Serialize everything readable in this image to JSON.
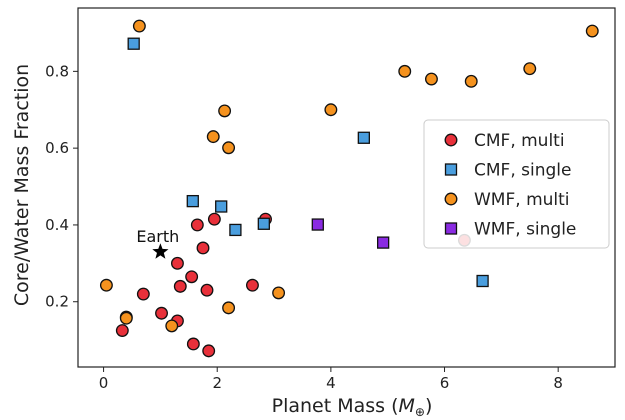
{
  "chart_data": {
    "type": "scatter",
    "title": "",
    "xlabel": "Planet Mass (",
    "xlabel_math": "M",
    "xlabel_sub": "⊕",
    "xlabel_end": ")",
    "ylabel": "Core/Water Mass Fraction",
    "xlim": [
      -0.45,
      9.0
    ],
    "ylim": [
      0.03,
      0.965
    ],
    "xticks": [
      0,
      2,
      4,
      6,
      8
    ],
    "yticks": [
      0.2,
      0.4,
      0.6,
      0.8
    ],
    "xtick_labels": [
      "0",
      "2",
      "4",
      "6",
      "8"
    ],
    "ytick_labels": [
      "0.2",
      "0.4",
      "0.6",
      "0.8"
    ],
    "grid": false,
    "legend_position": "right",
    "series": [
      {
        "name": "CMF, multi",
        "marker": "circle",
        "color": "#e8303a",
        "points": [
          {
            "x": 0.33,
            "y": 0.125
          },
          {
            "x": 0.4,
            "y": 0.16
          },
          {
            "x": 0.7,
            "y": 0.22
          },
          {
            "x": 1.02,
            "y": 0.17
          },
          {
            "x": 1.3,
            "y": 0.3
          },
          {
            "x": 1.35,
            "y": 0.24
          },
          {
            "x": 1.3,
            "y": 0.15
          },
          {
            "x": 1.55,
            "y": 0.265
          },
          {
            "x": 1.58,
            "y": 0.09
          },
          {
            "x": 1.65,
            "y": 0.4
          },
          {
            "x": 1.75,
            "y": 0.34
          },
          {
            "x": 1.82,
            "y": 0.23
          },
          {
            "x": 1.85,
            "y": 0.072
          },
          {
            "x": 1.95,
            "y": 0.415
          },
          {
            "x": 2.62,
            "y": 0.243
          },
          {
            "x": 2.85,
            "y": 0.415
          },
          {
            "x": 6.35,
            "y": 0.36
          }
        ]
      },
      {
        "name": "CMF, single",
        "marker": "square",
        "color": "#4a9ede",
        "points": [
          {
            "x": 0.53,
            "y": 0.872
          },
          {
            "x": 1.57,
            "y": 0.462
          },
          {
            "x": 2.07,
            "y": 0.448
          },
          {
            "x": 2.32,
            "y": 0.387
          },
          {
            "x": 2.82,
            "y": 0.403
          },
          {
            "x": 4.58,
            "y": 0.627
          },
          {
            "x": 6.67,
            "y": 0.254
          }
        ]
      },
      {
        "name": "WMF, multi",
        "marker": "circle",
        "color": "#f5921e",
        "points": [
          {
            "x": 0.05,
            "y": 0.243
          },
          {
            "x": 0.4,
            "y": 0.157
          },
          {
            "x": 0.63,
            "y": 0.918
          },
          {
            "x": 1.2,
            "y": 0.137
          },
          {
            "x": 1.93,
            "y": 0.63
          },
          {
            "x": 2.13,
            "y": 0.697
          },
          {
            "x": 2.2,
            "y": 0.601
          },
          {
            "x": 2.2,
            "y": 0.184
          },
          {
            "x": 3.08,
            "y": 0.223
          },
          {
            "x": 4.0,
            "y": 0.7
          },
          {
            "x": 5.3,
            "y": 0.8
          },
          {
            "x": 5.77,
            "y": 0.78
          },
          {
            "x": 6.47,
            "y": 0.774
          },
          {
            "x": 7.5,
            "y": 0.807
          },
          {
            "x": 8.6,
            "y": 0.905
          }
        ]
      },
      {
        "name": "WMF, single",
        "marker": "square",
        "color": "#8a2be2",
        "points": [
          {
            "x": 3.77,
            "y": 0.401
          },
          {
            "x": 4.92,
            "y": 0.354
          }
        ]
      }
    ],
    "annotations": [
      {
        "label": "Earth",
        "marker": "star",
        "color": "#000000",
        "x": 1.0,
        "y": 0.33
      }
    ]
  }
}
